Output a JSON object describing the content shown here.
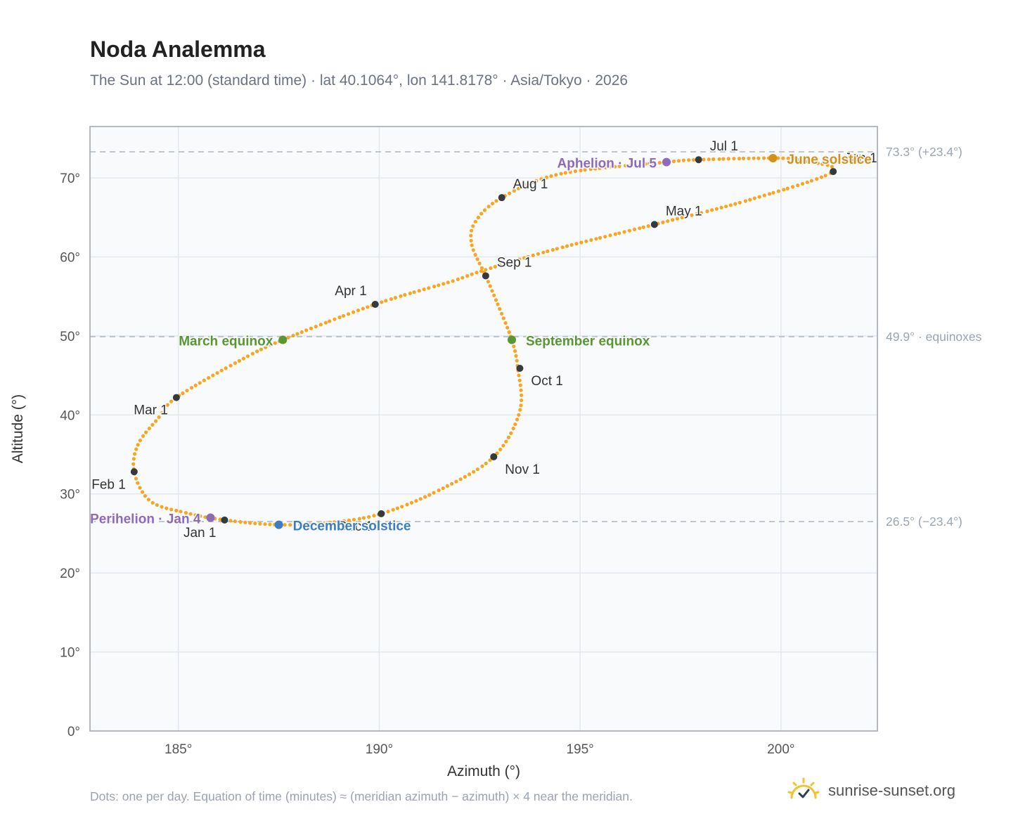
{
  "header": {
    "title": "Noda Analemma",
    "subtitle": "The Sun at 12:00 (standard time) · lat 40.1064°, lon 141.8178° · Asia/Tokyo · 2026"
  },
  "footer": {
    "note": "Dots: one per day. Equation of time (minutes) ≈ (meridian azimuth − azimuth) × 4 near the meridian.",
    "brand": "sunrise-sunset.org"
  },
  "colors": {
    "curve": "#f5a623",
    "month_marker": "#333a40",
    "equinox": "#5a9632",
    "solstice_june": "#d4901a",
    "solstice_december": "#3d7ec2",
    "perihelion_aphelion": "#8e6ab8",
    "reference_line": "#b8c0c8",
    "plot_bg": "#f8fafc",
    "grid": "#e3e8ee"
  },
  "chart_data": {
    "type": "scatter",
    "xlabel": "Azimuth (°)",
    "ylabel": "Altitude (°)",
    "xlim": [
      182.8,
      202.4
    ],
    "ylim": [
      0,
      76.5
    ],
    "x_ticks": [
      185,
      190,
      195,
      200
    ],
    "x_tick_labels": [
      "185°",
      "190°",
      "195°",
      "200°"
    ],
    "y_ticks": [
      0,
      10,
      20,
      30,
      40,
      50,
      60,
      70
    ],
    "y_tick_labels": [
      "0°",
      "10°",
      "20°",
      "30°",
      "40°",
      "50°",
      "60°",
      "70°"
    ],
    "grid": true,
    "reference_lines": [
      {
        "y": 73.3,
        "label": "73.3° (+23.4°)"
      },
      {
        "y": 49.9,
        "label": "49.9° · equinoxes"
      },
      {
        "y": 26.5,
        "label": "26.5° (−23.4°)"
      }
    ],
    "curve_anchors": [
      {
        "az": 186.15,
        "alt": 26.7
      },
      {
        "az": 185.2,
        "alt": 27.6
      },
      {
        "az": 184.3,
        "alt": 29.1
      },
      {
        "az": 183.9,
        "alt": 32.8
      },
      {
        "az": 184.0,
        "alt": 36.3
      },
      {
        "az": 184.5,
        "alt": 39.6
      },
      {
        "az": 184.95,
        "alt": 42.2
      },
      {
        "az": 186.5,
        "alt": 46.8
      },
      {
        "az": 187.6,
        "alt": 49.5
      },
      {
        "az": 189.9,
        "alt": 54.0
      },
      {
        "az": 191.8,
        "alt": 56.9
      },
      {
        "az": 192.6,
        "alt": 58.3
      },
      {
        "az": 194.4,
        "alt": 61.0
      },
      {
        "az": 196.85,
        "alt": 64.1
      },
      {
        "az": 199.2,
        "alt": 67.2
      },
      {
        "az": 201.3,
        "alt": 70.8
      },
      {
        "az": 200.5,
        "alt": 72.2
      },
      {
        "az": 199.8,
        "alt": 72.5
      },
      {
        "az": 197.95,
        "alt": 72.3
      },
      {
        "az": 197.15,
        "alt": 72.0
      },
      {
        "az": 194.5,
        "alt": 70.5
      },
      {
        "az": 193.05,
        "alt": 67.5
      },
      {
        "az": 192.4,
        "alt": 64.5
      },
      {
        "az": 192.3,
        "alt": 61.6
      },
      {
        "az": 192.65,
        "alt": 57.6
      },
      {
        "az": 192.95,
        "alt": 54.0
      },
      {
        "az": 193.3,
        "alt": 49.5
      },
      {
        "az": 193.45,
        "alt": 45.9
      },
      {
        "az": 193.5,
        "alt": 40.5
      },
      {
        "az": 192.85,
        "alt": 34.7
      },
      {
        "az": 191.5,
        "alt": 30.5
      },
      {
        "az": 190.05,
        "alt": 27.5
      },
      {
        "az": 188.8,
        "alt": 26.4
      },
      {
        "az": 187.5,
        "alt": 26.1
      },
      {
        "az": 186.15,
        "alt": 26.7
      }
    ],
    "month_markers": [
      {
        "label": "Jan 1",
        "az": 186.15,
        "alt": 26.7,
        "anchor": "end",
        "pos": "below"
      },
      {
        "label": "Feb 1",
        "az": 183.9,
        "alt": 32.8,
        "anchor": "end",
        "pos": "below"
      },
      {
        "label": "Mar 1",
        "az": 184.95,
        "alt": 42.2,
        "anchor": "end",
        "pos": "below"
      },
      {
        "label": "Apr 1",
        "az": 189.9,
        "alt": 54.0,
        "anchor": "end",
        "pos": "above"
      },
      {
        "label": "May 1",
        "az": 196.85,
        "alt": 64.1,
        "anchor": "start",
        "pos": "above"
      },
      {
        "label": "Jun 1",
        "az": 201.3,
        "alt": 70.8,
        "anchor": "start",
        "pos": "above"
      },
      {
        "label": "Jul 1",
        "az": 197.95,
        "alt": 72.3,
        "anchor": "start",
        "pos": "above"
      },
      {
        "label": "Aug 1",
        "az": 193.05,
        "alt": 67.5,
        "anchor": "start",
        "pos": "above"
      },
      {
        "label": "Sep 1",
        "az": 192.65,
        "alt": 57.6,
        "anchor": "start",
        "pos": "above"
      },
      {
        "label": "Oct 1",
        "az": 193.5,
        "alt": 45.9,
        "anchor": "start",
        "pos": "below"
      },
      {
        "label": "Nov 1",
        "az": 192.85,
        "alt": 34.7,
        "anchor": "start",
        "pos": "below"
      },
      {
        "label": "Dec 1",
        "az": 190.05,
        "alt": 27.5,
        "anchor": "end",
        "pos": "below"
      }
    ],
    "events": [
      {
        "label": "March equinox",
        "az": 187.6,
        "alt": 49.5,
        "color": "#5a9632",
        "anchor": "end"
      },
      {
        "label": "September equinox",
        "az": 193.3,
        "alt": 49.5,
        "color": "#5a9632",
        "anchor": "start"
      },
      {
        "label": "June solstice",
        "az": 199.8,
        "alt": 72.5,
        "color": "#d4901a",
        "anchor": "start"
      },
      {
        "label": "December solstice",
        "az": 187.5,
        "alt": 26.1,
        "color": "#3d7ec2",
        "anchor": "start"
      },
      {
        "label": "Perihelion · Jan 4",
        "az": 185.8,
        "alt": 27.0,
        "color": "#8e6ab8",
        "anchor": "end"
      },
      {
        "label": "Aphelion · Jul 5",
        "az": 197.15,
        "alt": 72.0,
        "color": "#8e6ab8",
        "anchor": "end"
      }
    ]
  }
}
